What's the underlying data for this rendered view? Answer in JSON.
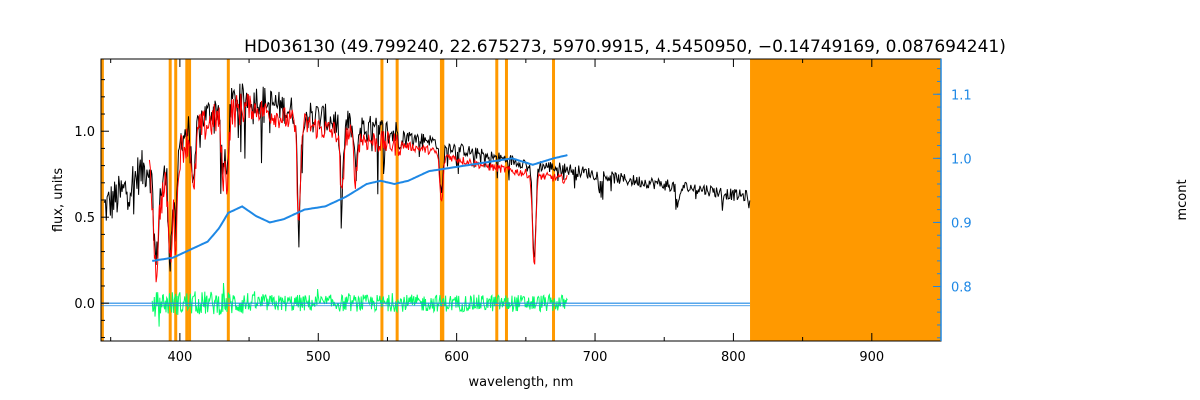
{
  "chart_data": {
    "type": "line",
    "title": "HD036130   (49.799240, 22.675273, 5970.9915, 4.5450950, −0.14749169, 0.087694241)",
    "xlabel": "wavelength, nm",
    "ylabel": "flux, units",
    "y2label": "mcont",
    "xlim": [
      343,
      950
    ],
    "ylim": [
      -0.22,
      1.42
    ],
    "y2lim": [
      0.715,
      1.155
    ],
    "xticks": [
      400,
      500,
      600,
      700,
      800,
      900
    ],
    "yticks": [
      0.0,
      0.5,
      1.0
    ],
    "y2ticks": [
      0.8,
      0.9,
      1.0,
      1.1
    ],
    "grid": false,
    "colors": {
      "observed": "#000000",
      "model": "#ff0000",
      "residual": "#00ff66",
      "continuum": "#1e88e5",
      "mask": "#ff9900",
      "axes": "#000000",
      "right_axis": "#1e88e5"
    },
    "mask_region": [
      812,
      950
    ],
    "mask_lines": [
      344,
      393,
      397,
      405,
      407,
      435,
      546,
      557,
      589,
      590,
      629,
      636,
      670
    ],
    "observed_envelope": {
      "x": [
        345,
        360,
        370,
        378,
        382,
        390,
        395,
        400,
        410,
        420,
        430,
        440,
        450,
        460,
        470,
        480,
        500,
        520,
        540,
        560,
        580,
        600,
        620,
        640,
        660,
        680,
        700,
        720,
        740,
        760,
        780,
        800,
        812
      ],
      "y": [
        0.55,
        0.65,
        0.75,
        0.8,
        0.55,
        0.75,
        0.8,
        0.95,
        1.05,
        1.1,
        1.15,
        1.18,
        1.2,
        1.18,
        1.15,
        1.12,
        1.08,
        1.04,
        1.0,
        0.98,
        0.95,
        0.9,
        0.86,
        0.83,
        0.8,
        0.78,
        0.75,
        0.72,
        0.7,
        0.68,
        0.66,
        0.63,
        0.62
      ]
    },
    "absorption_lines": [
      {
        "x": 383,
        "depth": 0.35
      },
      {
        "x": 393,
        "depth": 0.5
      },
      {
        "x": 397,
        "depth": 0.45
      },
      {
        "x": 410,
        "depth": 0.4
      },
      {
        "x": 431,
        "depth": 0.35
      },
      {
        "x": 434,
        "depth": 0.4
      },
      {
        "x": 486,
        "depth": 0.6
      },
      {
        "x": 517,
        "depth": 0.4
      },
      {
        "x": 527,
        "depth": 0.25
      },
      {
        "x": 589,
        "depth": 0.3
      },
      {
        "x": 656,
        "depth": 0.55
      },
      {
        "x": 760,
        "depth": 0.12
      }
    ],
    "model_range": [
      378,
      680
    ],
    "residual_range": [
      380,
      680
    ],
    "residual_amplitude": 0.05,
    "continuum": {
      "x": [
        380,
        395,
        410,
        420,
        428,
        435,
        445,
        455,
        465,
        475,
        490,
        505,
        520,
        535,
        545,
        555,
        565,
        580,
        595,
        610,
        625,
        640,
        655,
        670,
        680
      ],
      "y": [
        0.84,
        0.845,
        0.86,
        0.87,
        0.89,
        0.915,
        0.925,
        0.91,
        0.9,
        0.905,
        0.92,
        0.925,
        0.94,
        0.96,
        0.965,
        0.96,
        0.965,
        0.98,
        0.985,
        0.99,
        0.995,
        1.0,
        0.99,
        1.0,
        1.005
      ]
    }
  }
}
